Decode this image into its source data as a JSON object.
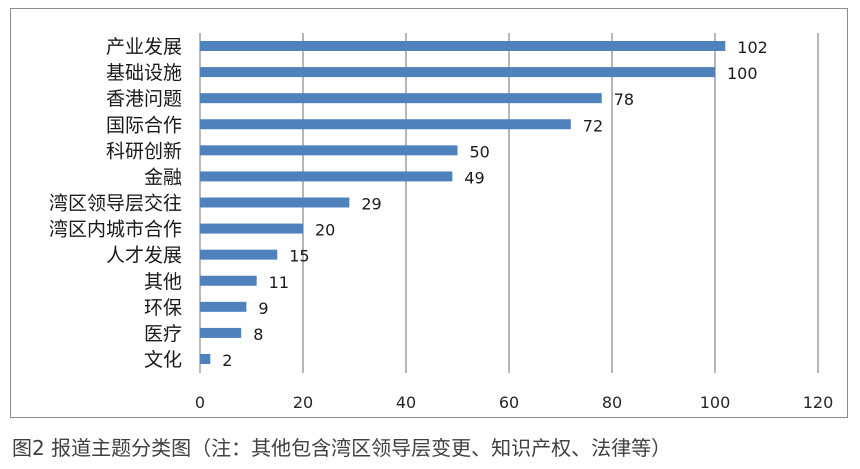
{
  "chart_data": {
    "type": "bar",
    "orientation": "horizontal",
    "categories": [
      "产业发展",
      "基础设施",
      "香港问题",
      "国际合作",
      "科研创新",
      "金融",
      "湾区领导层交往",
      "湾区内城市合作",
      "人才发展",
      "其他",
      "环保",
      "医疗",
      "文化"
    ],
    "values": [
      102,
      100,
      78,
      72,
      50,
      49,
      29,
      20,
      15,
      11,
      9,
      8,
      2
    ],
    "xlim": [
      0,
      120
    ],
    "xticks": [
      0,
      20,
      40,
      60,
      80,
      100,
      120
    ],
    "grid": "vertical",
    "data_labels": true,
    "bar_color": "#4f81bd"
  },
  "caption": "图2 报道主题分类图（注：其他包含湾区领导层变更、知识产权、法律等）"
}
